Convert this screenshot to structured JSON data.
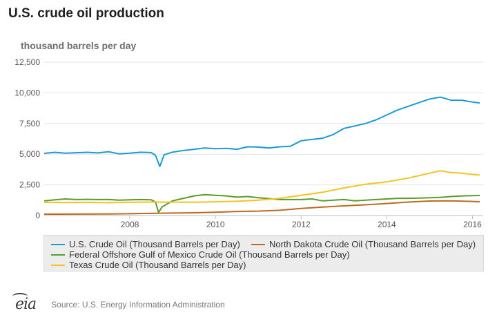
{
  "chart_data": {
    "type": "line",
    "title": "U.S. crude oil production",
    "ylabel": "thousand barrels per day",
    "xlabel": "",
    "xlim": [
      2006.0,
      2016.25
    ],
    "ylim": [
      0,
      12500
    ],
    "yticks": [
      0,
      2500,
      5000,
      7500,
      10000,
      12500
    ],
    "ytick_labels": [
      "0",
      "2,500",
      "5,000",
      "7,500",
      "10,000",
      "12,500"
    ],
    "xticks": [
      2008,
      2010,
      2012,
      2014,
      2016
    ],
    "xtick_labels": [
      "2008",
      "2010",
      "2012",
      "2014",
      "2016"
    ],
    "grid": true,
    "legend_position": "bottom",
    "series": [
      {
        "name": "U.S. Crude Oil (Thousand Barrels per Day)",
        "color": "#1c9ad6",
        "points": [
          [
            2006.0,
            5070
          ],
          [
            2006.25,
            5150
          ],
          [
            2006.5,
            5080
          ],
          [
            2006.75,
            5120
          ],
          [
            2007.0,
            5150
          ],
          [
            2007.25,
            5100
          ],
          [
            2007.5,
            5200
          ],
          [
            2007.75,
            5030
          ],
          [
            2008.0,
            5080
          ],
          [
            2008.25,
            5160
          ],
          [
            2008.5,
            5130
          ],
          [
            2008.6,
            4900
          ],
          [
            2008.7,
            4000
          ],
          [
            2008.8,
            4950
          ],
          [
            2009.0,
            5170
          ],
          [
            2009.25,
            5300
          ],
          [
            2009.5,
            5400
          ],
          [
            2009.75,
            5500
          ],
          [
            2010.0,
            5450
          ],
          [
            2010.25,
            5480
          ],
          [
            2010.5,
            5400
          ],
          [
            2010.75,
            5600
          ],
          [
            2011.0,
            5580
          ],
          [
            2011.25,
            5500
          ],
          [
            2011.5,
            5600
          ],
          [
            2011.75,
            5650
          ],
          [
            2012.0,
            6100
          ],
          [
            2012.25,
            6200
          ],
          [
            2012.5,
            6300
          ],
          [
            2012.75,
            6600
          ],
          [
            2013.0,
            7100
          ],
          [
            2013.25,
            7300
          ],
          [
            2013.5,
            7500
          ],
          [
            2013.75,
            7800
          ],
          [
            2014.0,
            8200
          ],
          [
            2014.25,
            8600
          ],
          [
            2014.5,
            8900
          ],
          [
            2014.75,
            9200
          ],
          [
            2015.0,
            9500
          ],
          [
            2015.25,
            9650
          ],
          [
            2015.5,
            9400
          ],
          [
            2015.75,
            9400
          ],
          [
            2016.0,
            9250
          ],
          [
            2016.17,
            9180
          ]
        ]
      },
      {
        "name": "North Dakota Crude Oil (Thousand Barrels per Day)",
        "color": "#bf6920",
        "points": [
          [
            2006.0,
            110
          ],
          [
            2006.5,
            115
          ],
          [
            2007.0,
            120
          ],
          [
            2007.5,
            125
          ],
          [
            2008.0,
            145
          ],
          [
            2008.5,
            175
          ],
          [
            2009.0,
            200
          ],
          [
            2009.5,
            225
          ],
          [
            2010.0,
            270
          ],
          [
            2010.5,
            330
          ],
          [
            2011.0,
            360
          ],
          [
            2011.5,
            430
          ],
          [
            2012.0,
            580
          ],
          [
            2012.5,
            690
          ],
          [
            2013.0,
            790
          ],
          [
            2013.5,
            870
          ],
          [
            2014.0,
            980
          ],
          [
            2014.5,
            1100
          ],
          [
            2015.0,
            1180
          ],
          [
            2015.5,
            1200
          ],
          [
            2016.0,
            1150
          ],
          [
            2016.17,
            1120
          ]
        ]
      },
      {
        "name": "Federal Offshore Gulf of Mexico Crude Oil (Thousand Barrels per Day)",
        "color": "#5a9b2e",
        "points": [
          [
            2006.0,
            1200
          ],
          [
            2006.25,
            1280
          ],
          [
            2006.5,
            1350
          ],
          [
            2006.75,
            1300
          ],
          [
            2007.0,
            1320
          ],
          [
            2007.25,
            1300
          ],
          [
            2007.5,
            1310
          ],
          [
            2007.75,
            1250
          ],
          [
            2008.0,
            1280
          ],
          [
            2008.25,
            1300
          ],
          [
            2008.5,
            1280
          ],
          [
            2008.6,
            1100
          ],
          [
            2008.67,
            250
          ],
          [
            2008.75,
            700
          ],
          [
            2009.0,
            1200
          ],
          [
            2009.25,
            1400
          ],
          [
            2009.5,
            1600
          ],
          [
            2009.75,
            1700
          ],
          [
            2010.0,
            1650
          ],
          [
            2010.25,
            1600
          ],
          [
            2010.5,
            1500
          ],
          [
            2010.75,
            1550
          ],
          [
            2011.0,
            1450
          ],
          [
            2011.25,
            1380
          ],
          [
            2011.5,
            1300
          ],
          [
            2011.75,
            1300
          ],
          [
            2012.0,
            1300
          ],
          [
            2012.25,
            1350
          ],
          [
            2012.5,
            1200
          ],
          [
            2012.75,
            1250
          ],
          [
            2013.0,
            1300
          ],
          [
            2013.25,
            1200
          ],
          [
            2013.5,
            1250
          ],
          [
            2013.75,
            1300
          ],
          [
            2014.0,
            1350
          ],
          [
            2014.25,
            1400
          ],
          [
            2014.5,
            1400
          ],
          [
            2014.75,
            1420
          ],
          [
            2015.0,
            1450
          ],
          [
            2015.25,
            1480
          ],
          [
            2015.5,
            1550
          ],
          [
            2015.75,
            1600
          ],
          [
            2016.0,
            1620
          ],
          [
            2016.17,
            1640
          ]
        ]
      },
      {
        "name": "Texas Crude Oil (Thousand Barrels per Day)",
        "color": "#f7c21b",
        "points": [
          [
            2006.0,
            1080
          ],
          [
            2006.5,
            1060
          ],
          [
            2007.0,
            1070
          ],
          [
            2007.5,
            1050
          ],
          [
            2008.0,
            1080
          ],
          [
            2008.5,
            1100
          ],
          [
            2009.0,
            1090
          ],
          [
            2009.5,
            1080
          ],
          [
            2010.0,
            1120
          ],
          [
            2010.5,
            1160
          ],
          [
            2011.0,
            1250
          ],
          [
            2011.5,
            1400
          ],
          [
            2012.0,
            1650
          ],
          [
            2012.5,
            1900
          ],
          [
            2013.0,
            2250
          ],
          [
            2013.5,
            2550
          ],
          [
            2014.0,
            2750
          ],
          [
            2014.5,
            3050
          ],
          [
            2015.0,
            3450
          ],
          [
            2015.25,
            3650
          ],
          [
            2015.5,
            3500
          ],
          [
            2015.75,
            3450
          ],
          [
            2016.0,
            3350
          ],
          [
            2016.17,
            3300
          ]
        ]
      }
    ]
  },
  "footer": {
    "logo_text": "eia",
    "source_text": "Source: U.S. Energy Information Administration"
  }
}
